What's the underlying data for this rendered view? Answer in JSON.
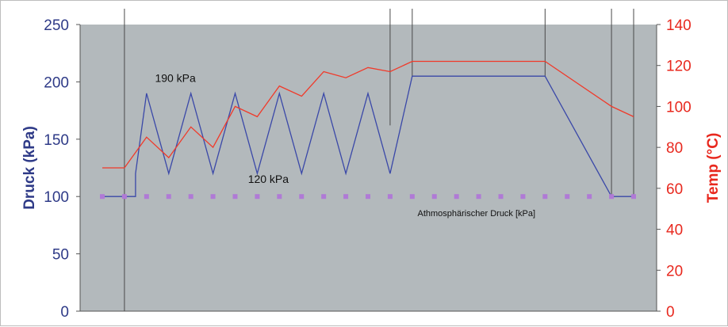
{
  "chart_data": {
    "type": "line",
    "y_left": {
      "label": "Druck (kPa)",
      "ylim": [
        0,
        250
      ],
      "ticks": [
        "0",
        "50",
        "100",
        "150",
        "200",
        "250"
      ],
      "color": "#2e3a87"
    },
    "y_right": {
      "label": "Temp (°C)",
      "ylim": [
        0,
        140
      ],
      "ticks": [
        "0",
        "20",
        "40",
        "60",
        "80",
        "100",
        "120",
        "140"
      ],
      "color": "#e8281e"
    },
    "plot_background": "#b3b9bc",
    "grid": false,
    "series": [
      {
        "axis": "left",
        "color": "#3a48a8",
        "points": [
          [
            0,
            100
          ],
          [
            1.5,
            100
          ],
          [
            1.5,
            120
          ],
          [
            2,
            190
          ],
          [
            3,
            120
          ],
          [
            4,
            190
          ],
          [
            5,
            120
          ],
          [
            6,
            190
          ],
          [
            7,
            120
          ],
          [
            8,
            190
          ],
          [
            9,
            120
          ],
          [
            10,
            190
          ],
          [
            11,
            120
          ],
          [
            12,
            190
          ],
          [
            13,
            120
          ],
          [
            14,
            205
          ],
          [
            20,
            205
          ],
          [
            23,
            100
          ],
          [
            24,
            100
          ]
        ]
      },
      {
        "axis": "right",
        "color": "#f03a2a",
        "points": [
          [
            0,
            70
          ],
          [
            1,
            70
          ],
          [
            2,
            85
          ],
          [
            3,
            75
          ],
          [
            4,
            90
          ],
          [
            5,
            80
          ],
          [
            6,
            100
          ],
          [
            7,
            95
          ],
          [
            8,
            110
          ],
          [
            9,
            105
          ],
          [
            10,
            117
          ],
          [
            11,
            114
          ],
          [
            12,
            119
          ],
          [
            13,
            117
          ],
          [
            14,
            122
          ],
          [
            20,
            122
          ],
          [
            23,
            100
          ],
          [
            24,
            95
          ]
        ]
      },
      {
        "name": "Athmosphärischer Druck [kPa]",
        "axis": "left",
        "style": "square-markers",
        "color": "#b07ad6",
        "points": [
          [
            0,
            100
          ],
          [
            1,
            100
          ],
          [
            2,
            100
          ],
          [
            3,
            100
          ],
          [
            4,
            100
          ],
          [
            5,
            100
          ],
          [
            6,
            100
          ],
          [
            7,
            100
          ],
          [
            8,
            100
          ],
          [
            9,
            100
          ],
          [
            10,
            100
          ],
          [
            11,
            100
          ],
          [
            12,
            100
          ],
          [
            13,
            100
          ],
          [
            14,
            100
          ],
          [
            15,
            100
          ],
          [
            16,
            100
          ],
          [
            17,
            100
          ],
          [
            18,
            100
          ],
          [
            19,
            100
          ],
          [
            20,
            100
          ],
          [
            21,
            100
          ],
          [
            22,
            100
          ],
          [
            23,
            100
          ],
          [
            24,
            100
          ]
        ]
      }
    ],
    "xlim": [
      0,
      24
    ],
    "vertical_lines": [
      {
        "x": 1,
        "y_from": 0,
        "y_to": 250
      },
      {
        "x": 13,
        "y_from": 162,
        "y_to": 250
      },
      {
        "x": 14,
        "y_from": 205,
        "y_to": 250
      },
      {
        "x": 20,
        "y_from": 205,
        "y_to": 250
      },
      {
        "x": 23,
        "y_from": 100,
        "y_to": 250
      },
      {
        "x": 24,
        "y_from": 100,
        "y_to": 250
      }
    ],
    "annotations": [
      {
        "text": "190 kPa",
        "x": 3.3,
        "y": 200
      },
      {
        "text": "120 kPa",
        "x": 7.5,
        "y": 112
      },
      {
        "text": "Athmosphärischer Druck [kPa]",
        "x": 16.9,
        "y": 83
      }
    ]
  }
}
